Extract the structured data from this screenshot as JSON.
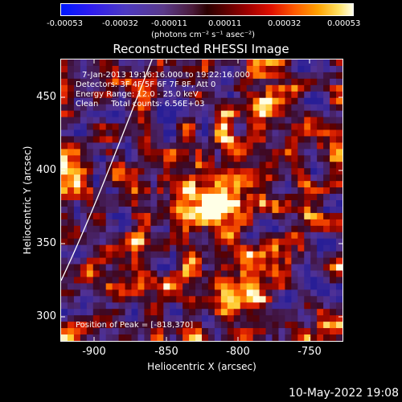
{
  "colorbar": {
    "ticks": [
      "-0.00053",
      "-0.00032",
      "-0.00011",
      "0.00011",
      "0.00032",
      "0.00053"
    ],
    "units": "(photons cm⁻² s⁻¹ asec⁻²)"
  },
  "title": "Reconstructed RHESSI Image",
  "annotation": {
    "time_range": "7-Jan-2013 19:16:16.000 to 19:22:16.000",
    "detectors": "Detectors: 3F 4F 5F 6F 7F 8F, Att 0",
    "energy": "Energy Range: 12.0 - 25.0 keV",
    "clean": "Clean     Total counts: 6.56E+03",
    "peak": "Position of Peak = [-818,370]"
  },
  "axes": {
    "xlabel": "Heliocentric X (arcsec)",
    "ylabel": "Heliocentric Y (arcsec)",
    "xticks": [
      "-900",
      "-850",
      "-800",
      "-750"
    ],
    "yticks": [
      "450",
      "400",
      "350",
      "300"
    ]
  },
  "timestamp": "10-May-2022 19:08",
  "colors": {
    "background": "#000000",
    "limb_line": "#ffffff"
  }
}
